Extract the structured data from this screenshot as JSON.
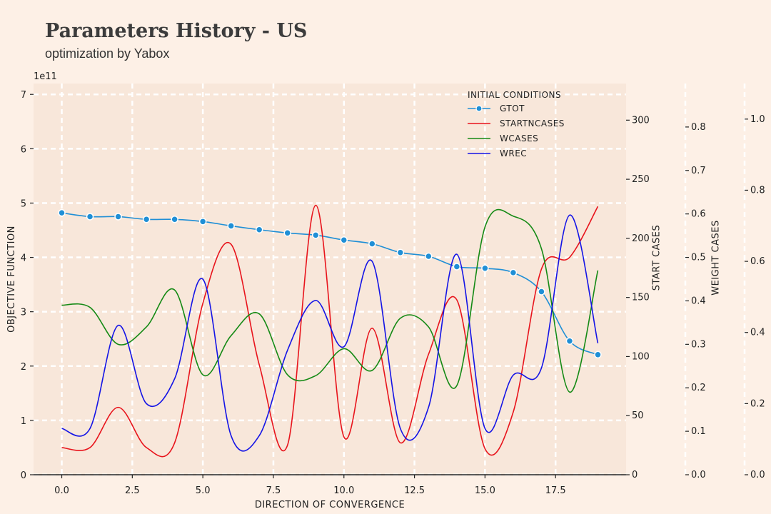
{
  "header": {
    "title": "Parameters History - US",
    "subtitle": "optimization by Yabox"
  },
  "chart_data": {
    "type": "line",
    "x": [
      0,
      1,
      2,
      3,
      4,
      5,
      6,
      7,
      8,
      9,
      10,
      11,
      12,
      13,
      14,
      15,
      16,
      17,
      18,
      19
    ],
    "xlabel": "DIRECTION OF CONVERGENCE",
    "xlim": [
      -1,
      20
    ],
    "xticks": [
      "0.0",
      "2.5",
      "5.0",
      "7.5",
      "10.0",
      "12.5",
      "15.0",
      "17.5"
    ],
    "xtick_values": [
      0,
      2.5,
      5,
      7.5,
      10,
      12.5,
      15,
      17.5
    ],
    "grid": true,
    "legend": {
      "title": "INITIAL CONDITIONS",
      "placement": "top-right"
    },
    "axes": [
      {
        "id": "objective",
        "label": "OBJECTIVE FUNCTION",
        "side": "left",
        "range": [
          0,
          7.2
        ],
        "ticks": [
          0,
          1,
          2,
          3,
          4,
          5,
          6,
          7
        ],
        "tick_labels": [
          "0",
          "1",
          "2",
          "3",
          "4",
          "5",
          "6",
          "7"
        ],
        "multiplier": "1e11"
      },
      {
        "id": "start",
        "label": "START CASES",
        "side": "right",
        "range": [
          0,
          331
        ],
        "ticks": [
          0,
          50,
          100,
          150,
          200,
          250,
          300
        ],
        "tick_labels": [
          "0",
          "50",
          "100",
          "150",
          "200",
          "250",
          "300"
        ]
      },
      {
        "id": "weightcases",
        "label": "WEIGHT CASES",
        "side": "right",
        "range": [
          0,
          0.9
        ],
        "ticks": [
          0,
          0.1,
          0.2,
          0.3,
          0.4,
          0.5,
          0.6,
          0.7,
          0.8
        ],
        "tick_labels": [
          "0.0",
          "0.1",
          "0.2",
          "0.3",
          "0.4",
          "0.5",
          "0.6",
          "0.7",
          "0.8"
        ]
      },
      {
        "id": "weightrec",
        "label": "",
        "side": "right",
        "range": [
          0,
          1.1
        ],
        "ticks": [
          0,
          0.2,
          0.4,
          0.6,
          0.8,
          1.0
        ],
        "tick_labels": [
          "0.0",
          "0.2",
          "0.4",
          "0.6",
          "0.8",
          "1.0"
        ]
      }
    ],
    "series": [
      {
        "name": "GTOT",
        "axis": "objective",
        "color": "#1f8fd6",
        "marker": true,
        "values": [
          4.82,
          4.75,
          4.75,
          4.7,
          4.7,
          4.66,
          4.58,
          4.51,
          4.45,
          4.41,
          4.32,
          4.25,
          4.09,
          4.02,
          3.83,
          3.8,
          3.72,
          3.37,
          2.46,
          2.21
        ]
      },
      {
        "name": "STARTNCASES",
        "axis": "start",
        "color": "#e8141c",
        "marker": false,
        "values": [
          23,
          23,
          57,
          23,
          27,
          145,
          195,
          93,
          25,
          228,
          32,
          124,
          27,
          102,
          148,
          22,
          53,
          174,
          184,
          227
        ]
      },
      {
        "name": "WCASES",
        "axis": "weightcases",
        "color": "#158a15",
        "marker": false,
        "values": [
          0.39,
          0.385,
          0.3,
          0.34,
          0.425,
          0.23,
          0.32,
          0.37,
          0.23,
          0.228,
          0.29,
          0.24,
          0.36,
          0.34,
          0.205,
          0.57,
          0.595,
          0.52,
          0.19,
          0.47
        ]
      },
      {
        "name": "WREC",
        "axis": "weightrec",
        "color": "#1414e6",
        "marker": false,
        "values": [
          0.13,
          0.13,
          0.42,
          0.2,
          0.27,
          0.55,
          0.11,
          0.11,
          0.35,
          0.49,
          0.36,
          0.6,
          0.13,
          0.19,
          0.62,
          0.13,
          0.28,
          0.3,
          0.73,
          0.37
        ]
      }
    ]
  }
}
